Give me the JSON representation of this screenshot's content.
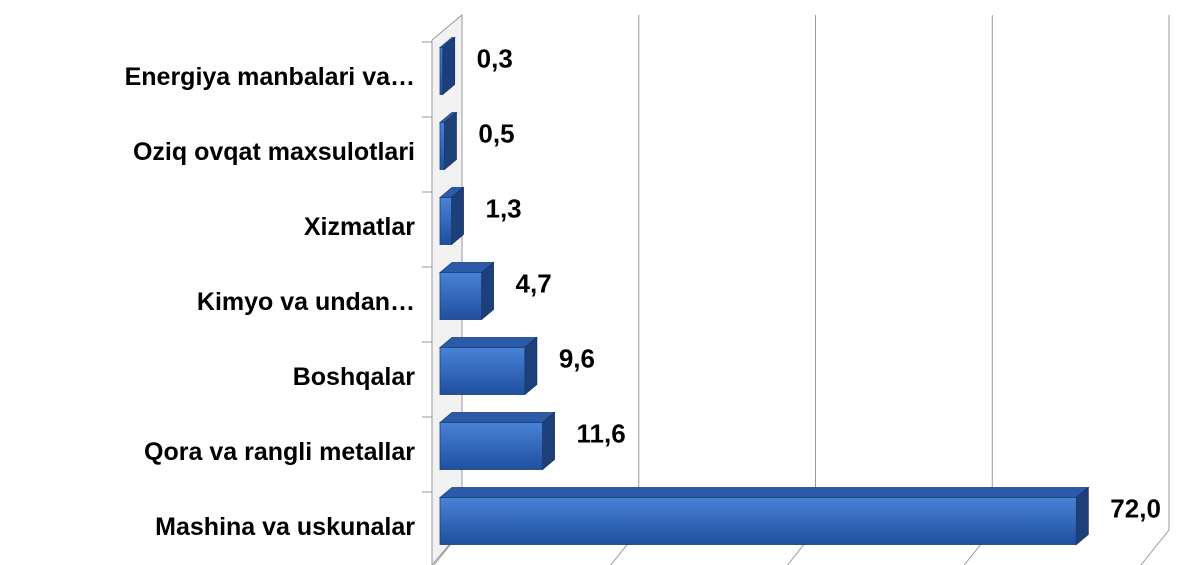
{
  "chart_data": {
    "type": "bar",
    "orientation": "horizontal",
    "categories": [
      "Mashina va uskunalar",
      "Qora va rangli metallar",
      "Boshqalar",
      "Kimyo va undan…",
      "Xizmatlar",
      "Oziq ovqat maxsulotlari",
      "Energiya manbalari va…"
    ],
    "values": [
      72.0,
      11.6,
      9.6,
      4.7,
      1.3,
      0.5,
      0.3
    ],
    "value_labels": [
      "72,0",
      "11,6",
      "9,6",
      "4,7",
      "1,3",
      "0,5",
      "0,3"
    ],
    "color": "#2f62b5",
    "xlim": [
      0,
      80
    ],
    "xticks": [
      0,
      20,
      40,
      60,
      80
    ],
    "grid": true
  }
}
